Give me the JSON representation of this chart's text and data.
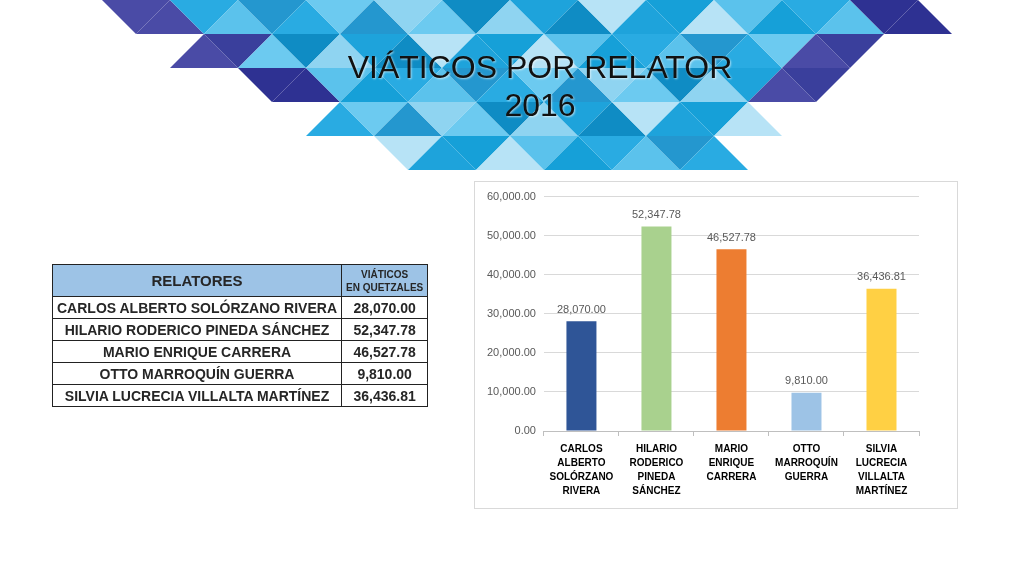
{
  "chart_data": {
    "type": "bar",
    "title": "VIÁTICOS POR RELATOR 2016",
    "annotations": [
      "RELATORES",
      "VIÁTICOS EN QUETZALES"
    ],
    "categories": [
      "CARLOS ALBERTO SOLÓRZANO RIVERA",
      "HILARIO RODERICO PINEDA SÁNCHEZ",
      "MARIO ENRIQUE CARRERA",
      "OTTO MARROQUÍN GUERRA",
      "SILVIA LUCRECIA VILLALTA MARTÍNEZ"
    ],
    "values": [
      28070.0,
      52347.78,
      46527.78,
      9810.0,
      36436.81
    ],
    "value_labels": [
      "28,070.00",
      "52,347.78",
      "46,527.78",
      "9,810.00",
      "36,436.81"
    ],
    "colors": [
      "#2f5597",
      "#a9d18e",
      "#ed7d31",
      "#9dc3e6",
      "#ffd044"
    ],
    "ylim": [
      0,
      60000
    ],
    "yticks": [
      {
        "value": 0,
        "label": "0.00"
      },
      {
        "value": 10000,
        "label": "10,000.00"
      },
      {
        "value": 20000,
        "label": "20,000.00"
      },
      {
        "value": 30000,
        "label": "30,000.00"
      },
      {
        "value": 40000,
        "label": "40,000.00"
      },
      {
        "value": 50000,
        "label": "50,000.00"
      },
      {
        "value": 60000,
        "label": "60,000.00"
      }
    ],
    "grid": "y"
  }
}
